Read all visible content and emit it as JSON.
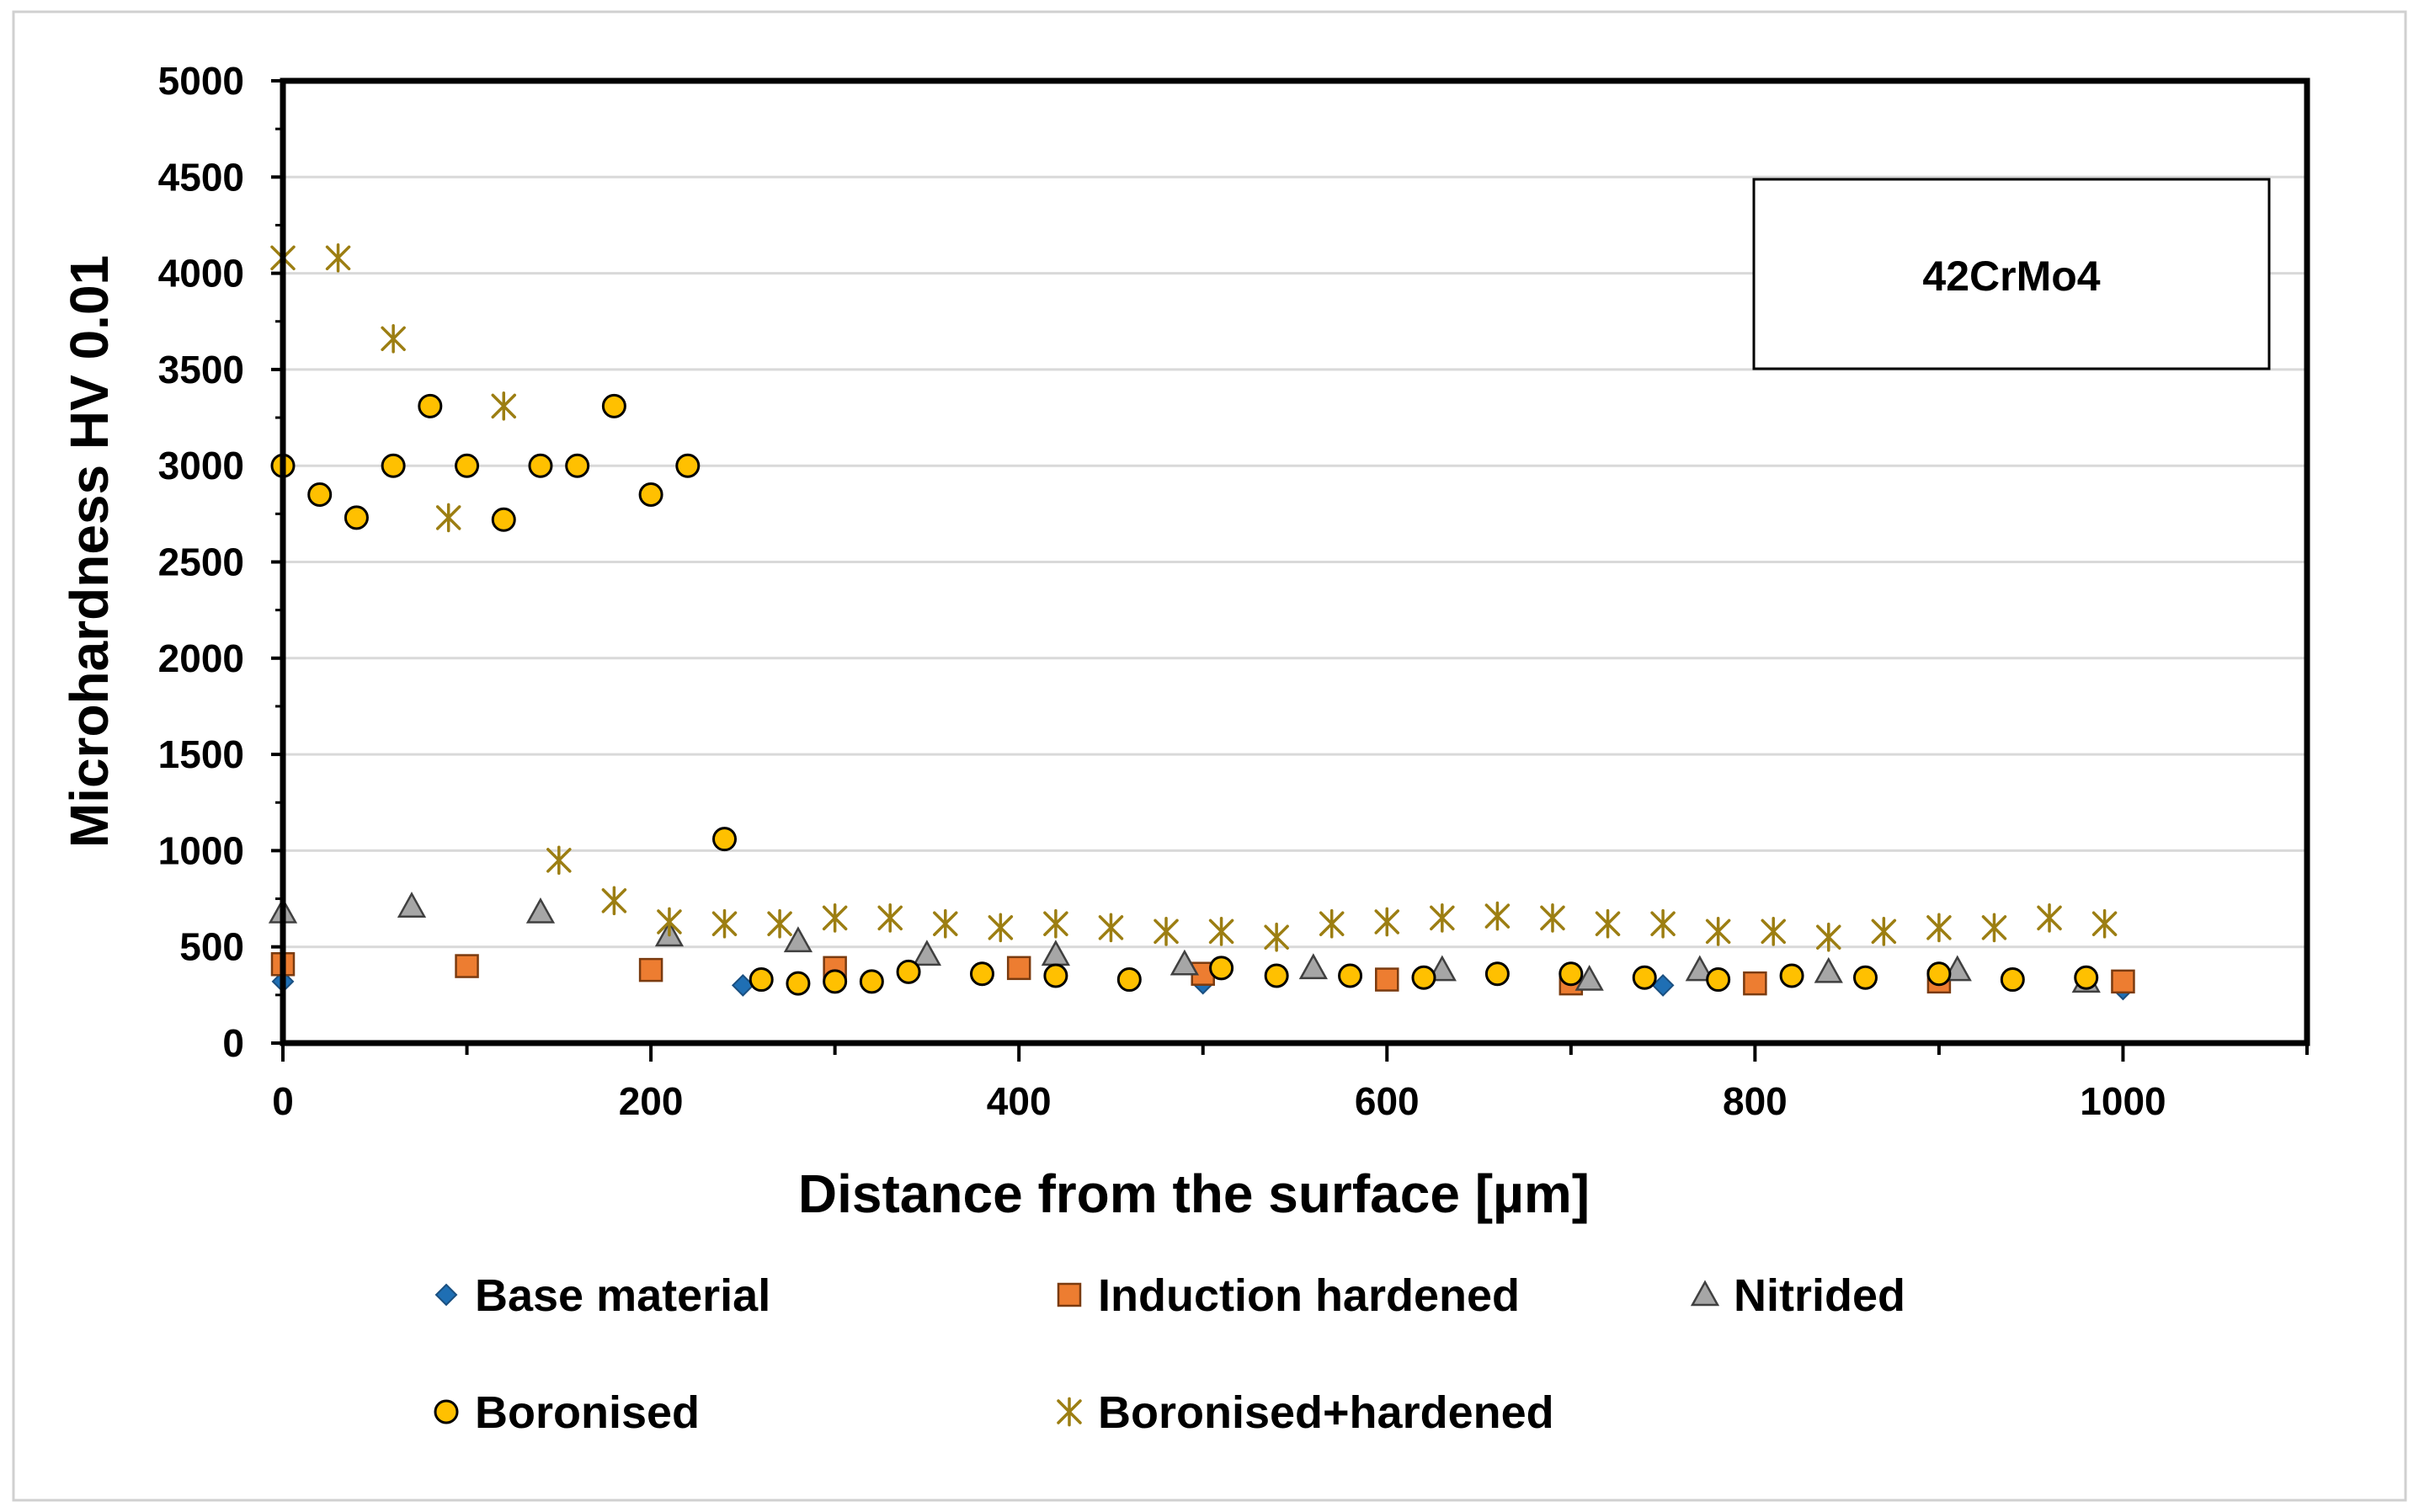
{
  "chart_data": {
    "type": "scatter",
    "title": "",
    "xlabel": "Distance from the surface [µm]",
    "ylabel": "Microhardness HV 0.01",
    "annotation": "42CrMo4",
    "xlim": [
      0,
      1100
    ],
    "ylim": [
      0,
      5000
    ],
    "xticks": [
      0,
      200,
      400,
      600,
      800,
      1000
    ],
    "yticks": [
      0,
      500,
      1000,
      1500,
      2000,
      2500,
      3000,
      3500,
      4000,
      4500,
      5000
    ],
    "grid": "horizontal",
    "legend_position": "bottom",
    "series": [
      {
        "name": "Base material",
        "marker": "diamond",
        "color": "#1f6fb4",
        "points": [
          [
            0,
            320
          ],
          [
            250,
            300
          ],
          [
            500,
            310
          ],
          [
            750,
            300
          ],
          [
            1000,
            280
          ]
        ]
      },
      {
        "name": "Induction hardened",
        "marker": "square",
        "color": "#ed7d31",
        "points": [
          [
            0,
            410
          ],
          [
            100,
            400
          ],
          [
            200,
            380
          ],
          [
            300,
            390
          ],
          [
            400,
            390
          ],
          [
            500,
            360
          ],
          [
            600,
            330
          ],
          [
            700,
            310
          ],
          [
            800,
            310
          ],
          [
            900,
            320
          ],
          [
            1000,
            320
          ]
        ]
      },
      {
        "name": "Nitrided",
        "marker": "triangle",
        "color": "#a6a6a6",
        "points": [
          [
            0,
            680
          ],
          [
            70,
            710
          ],
          [
            140,
            680
          ],
          [
            210,
            560
          ],
          [
            280,
            530
          ],
          [
            350,
            460
          ],
          [
            420,
            460
          ],
          [
            490,
            410
          ],
          [
            560,
            390
          ],
          [
            630,
            380
          ],
          [
            710,
            330
          ],
          [
            770,
            380
          ],
          [
            840,
            370
          ],
          [
            910,
            380
          ],
          [
            980,
            320
          ]
        ]
      },
      {
        "name": "Boronised",
        "marker": "circle",
        "color": "#ffc000",
        "points": [
          [
            0,
            3000
          ],
          [
            20,
            2850
          ],
          [
            40,
            2730
          ],
          [
            60,
            3000
          ],
          [
            80,
            3310
          ],
          [
            100,
            3000
          ],
          [
            120,
            2720
          ],
          [
            140,
            3000
          ],
          [
            160,
            3000
          ],
          [
            180,
            3310
          ],
          [
            200,
            2850
          ],
          [
            220,
            3000
          ],
          [
            240,
            1060
          ],
          [
            260,
            330
          ],
          [
            280,
            310
          ],
          [
            300,
            320
          ],
          [
            320,
            320
          ],
          [
            340,
            370
          ],
          [
            380,
            360
          ],
          [
            420,
            350
          ],
          [
            460,
            330
          ],
          [
            510,
            390
          ],
          [
            540,
            350
          ],
          [
            580,
            350
          ],
          [
            620,
            340
          ],
          [
            660,
            360
          ],
          [
            700,
            360
          ],
          [
            740,
            340
          ],
          [
            780,
            330
          ],
          [
            820,
            350
          ],
          [
            860,
            340
          ],
          [
            900,
            360
          ],
          [
            940,
            330
          ],
          [
            980,
            340
          ]
        ]
      },
      {
        "name": "Boronised+hardened",
        "marker": "star",
        "color": "#9c7e12",
        "points": [
          [
            0,
            4080
          ],
          [
            30,
            4080
          ],
          [
            60,
            3660
          ],
          [
            90,
            2730
          ],
          [
            120,
            3310
          ],
          [
            150,
            950
          ],
          [
            180,
            740
          ],
          [
            210,
            630
          ],
          [
            240,
            620
          ],
          [
            270,
            620
          ],
          [
            300,
            650
          ],
          [
            330,
            650
          ],
          [
            360,
            620
          ],
          [
            390,
            600
          ],
          [
            420,
            620
          ],
          [
            450,
            600
          ],
          [
            480,
            580
          ],
          [
            510,
            580
          ],
          [
            540,
            550
          ],
          [
            570,
            620
          ],
          [
            600,
            630
          ],
          [
            630,
            650
          ],
          [
            660,
            660
          ],
          [
            690,
            650
          ],
          [
            720,
            620
          ],
          [
            750,
            620
          ],
          [
            780,
            580
          ],
          [
            810,
            580
          ],
          [
            840,
            550
          ],
          [
            870,
            580
          ],
          [
            900,
            600
          ],
          [
            930,
            600
          ],
          [
            960,
            650
          ],
          [
            990,
            620
          ]
        ]
      }
    ]
  }
}
